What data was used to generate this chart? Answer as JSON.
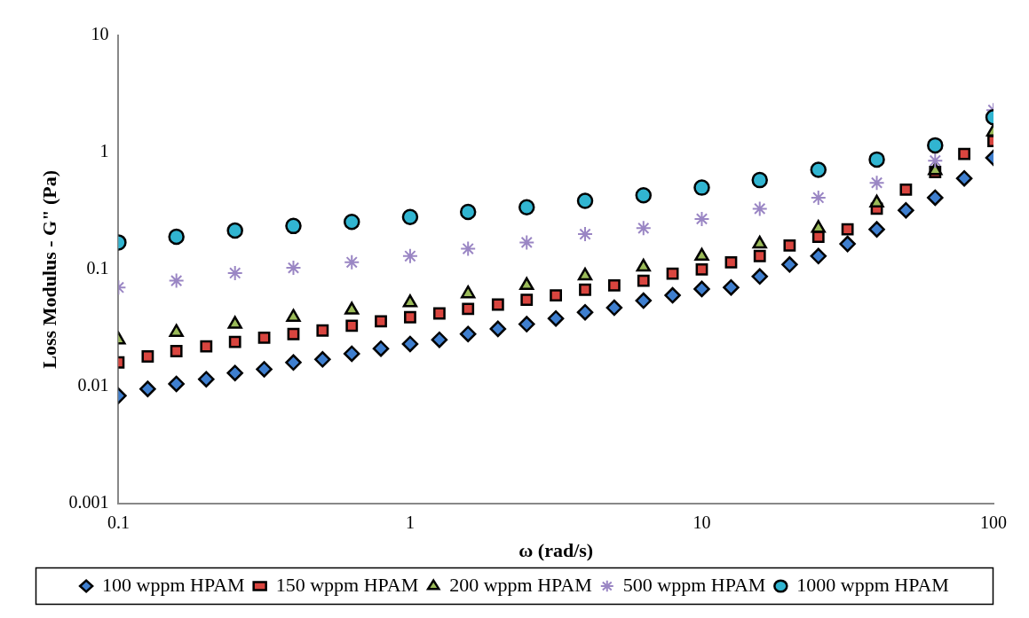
{
  "chart_data": {
    "type": "scatter",
    "xlabel": "ω (rad/s)",
    "ylabel": "Loss Modulus - G\" (Pa)",
    "log": "xy",
    "xlim": [
      0.1,
      100
    ],
    "xticks": [
      0.1,
      1,
      10,
      100
    ],
    "ylim": [
      0.001,
      10
    ],
    "yticks": [
      0.001,
      0.01,
      0.1,
      1,
      10
    ],
    "grid": false,
    "legend": "bottom",
    "series": [
      {
        "name": "100 wppm HPAM",
        "color": "#3f7fcf",
        "marker": "diamond",
        "x": [
          0.1,
          0.126,
          0.158,
          0.2,
          0.251,
          0.316,
          0.398,
          0.501,
          0.631,
          0.794,
          1,
          1.26,
          1.58,
          2,
          2.51,
          3.16,
          3.98,
          5.01,
          6.31,
          7.94,
          10,
          12.6,
          15.8,
          20,
          25.1,
          31.6,
          39.8,
          50.1,
          63.1,
          79.4,
          100
        ],
        "values": [
          0.0083,
          0.0095,
          0.0105,
          0.0115,
          0.013,
          0.014,
          0.016,
          0.017,
          0.019,
          0.021,
          0.023,
          0.025,
          0.028,
          0.031,
          0.034,
          0.038,
          0.043,
          0.047,
          0.054,
          0.06,
          0.068,
          0.07,
          0.087,
          0.11,
          0.13,
          0.165,
          0.22,
          0.32,
          0.41,
          0.6,
          0.9
        ]
      },
      {
        "name": "150 wppm HPAM",
        "color": "#d9453f",
        "marker": "square",
        "x": [
          0.1,
          0.126,
          0.158,
          0.2,
          0.251,
          0.316,
          0.398,
          0.501,
          0.631,
          0.794,
          1,
          1.26,
          1.58,
          2,
          2.51,
          3.16,
          3.98,
          5.01,
          6.31,
          7.94,
          10,
          12.6,
          15.8,
          20,
          25.1,
          31.6,
          39.8,
          50.1,
          63.1,
          79.4,
          100
        ],
        "values": [
          0.016,
          0.018,
          0.02,
          0.022,
          0.024,
          0.026,
          0.028,
          0.03,
          0.033,
          0.036,
          0.039,
          0.042,
          0.046,
          0.05,
          0.055,
          0.06,
          0.067,
          0.073,
          0.08,
          0.092,
          0.1,
          0.115,
          0.13,
          0.16,
          0.19,
          0.22,
          0.33,
          0.48,
          0.68,
          0.97,
          1.25
        ]
      },
      {
        "name": "200 wppm HPAM",
        "color": "#9bbb59",
        "marker": "triangle",
        "x": [
          0.1,
          0.158,
          0.251,
          0.398,
          0.631,
          1,
          1.58,
          2.51,
          3.98,
          6.31,
          10,
          15.8,
          25.1,
          39.8,
          63.1,
          100
        ],
        "values": [
          0.025,
          0.029,
          0.034,
          0.039,
          0.045,
          0.052,
          0.062,
          0.073,
          0.088,
          0.105,
          0.13,
          0.165,
          0.225,
          0.37,
          0.7,
          1.5
        ]
      },
      {
        "name": "500 wppm HPAM",
        "color": "#9a86c4",
        "marker": "cross",
        "x": [
          0.1,
          0.158,
          0.251,
          0.398,
          0.631,
          1,
          1.58,
          2.51,
          3.98,
          6.31,
          10,
          15.8,
          25.1,
          39.8,
          63.1,
          100
        ],
        "values": [
          0.07,
          0.08,
          0.093,
          0.103,
          0.115,
          0.13,
          0.15,
          0.17,
          0.2,
          0.225,
          0.27,
          0.33,
          0.41,
          0.55,
          0.85,
          2.3
        ]
      },
      {
        "name": "1000 wppm HPAM",
        "color": "#31b5d1",
        "marker": "circle",
        "x": [
          0.1,
          0.158,
          0.251,
          0.398,
          0.631,
          1,
          1.58,
          2.51,
          3.98,
          6.31,
          10,
          15.8,
          25.1,
          39.8,
          63.1,
          100
        ],
        "values": [
          0.17,
          0.19,
          0.215,
          0.235,
          0.255,
          0.28,
          0.31,
          0.34,
          0.385,
          0.43,
          0.5,
          0.58,
          0.71,
          0.87,
          1.15,
          2.0
        ]
      }
    ]
  }
}
